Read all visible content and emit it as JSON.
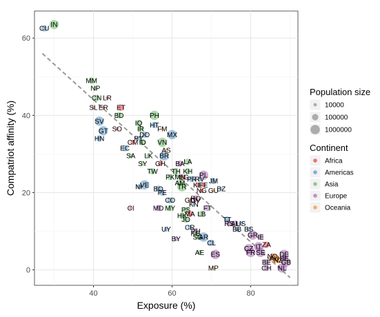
{
  "chart_data": {
    "type": "scatter",
    "xlabel": "Exposure (%)",
    "ylabel": "Compatriot affinity (%)",
    "xlim": [
      25,
      92
    ],
    "ylim": [
      -4,
      67
    ],
    "xticks": [
      40,
      60,
      80
    ],
    "yticks": [
      0,
      20,
      40,
      60
    ],
    "x_tick_labels": [
      "40",
      "60",
      "80"
    ],
    "y_tick_labels": [
      "0",
      "20",
      "40",
      "60"
    ],
    "grid": true,
    "trendline": {
      "style": "dashed",
      "x": [
        27,
        90
      ],
      "y": [
        56,
        -2
      ]
    },
    "colors": {
      "Africa": "#e41a1c",
      "Americas": "#377eb8",
      "Asia": "#4daf4a",
      "Europe": "#984ea3",
      "Oceania": "#ff7f00"
    },
    "legend_size": {
      "title": "Population size",
      "entries": [
        {
          "label": "10000",
          "value": 10000
        },
        {
          "label": "100000",
          "value": 100000
        },
        {
          "label": "1000000",
          "value": 1000000
        }
      ]
    },
    "legend_continent": {
      "title": "Continent",
      "entries": [
        "Africa",
        "Americas",
        "Asia",
        "Europe",
        "Oceania"
      ]
    },
    "points": [
      {
        "label": "CU",
        "x": 27.5,
        "y": 62.5,
        "continent": "Americas",
        "pop": 100000
      },
      {
        "label": "IN",
        "x": 30.0,
        "y": 63.5,
        "continent": "Asia",
        "pop": 1000000
      },
      {
        "label": "MM",
        "x": 39.5,
        "y": 49.0,
        "continent": "Asia",
        "pop": 100000
      },
      {
        "label": "NP",
        "x": 40.5,
        "y": 47.0,
        "continent": "Asia",
        "pop": 30000
      },
      {
        "label": "CN",
        "x": 40.8,
        "y": 44.5,
        "continent": "Asia",
        "pop": 100000
      },
      {
        "label": "LR",
        "x": 43.5,
        "y": 44.5,
        "continent": "Africa",
        "pop": 10000
      },
      {
        "label": "SL",
        "x": 40.0,
        "y": 42.0,
        "continent": "Africa",
        "pop": 10000
      },
      {
        "label": "ER",
        "x": 42.5,
        "y": 42.0,
        "continent": "Africa",
        "pop": 10000
      },
      {
        "label": "ET",
        "x": 47.0,
        "y": 42.0,
        "continent": "Africa",
        "pop": 100000
      },
      {
        "label": "BD",
        "x": 46.5,
        "y": 40.0,
        "continent": "Asia",
        "pop": 100000
      },
      {
        "label": "PH",
        "x": 55.5,
        "y": 40.0,
        "continent": "Asia",
        "pop": 1000000
      },
      {
        "label": "SV",
        "x": 41.5,
        "y": 38.5,
        "continent": "Americas",
        "pop": 1000000
      },
      {
        "label": "IQ",
        "x": 51.5,
        "y": 38.0,
        "continent": "Asia",
        "pop": 100000
      },
      {
        "label": "HT",
        "x": 55.5,
        "y": 37.5,
        "continent": "Americas",
        "pop": 100000
      },
      {
        "label": "IR",
        "x": 52.0,
        "y": 36.5,
        "continent": "Asia",
        "pop": 100000
      },
      {
        "label": "SO",
        "x": 46.0,
        "y": 36.5,
        "continent": "Africa",
        "pop": 10000
      },
      {
        "label": "FM",
        "x": 57.5,
        "y": 36.5,
        "continent": "Oceania",
        "pop": 10000
      },
      {
        "label": "GT",
        "x": 42.5,
        "y": 36.0,
        "continent": "Americas",
        "pop": 1000000
      },
      {
        "label": "DO",
        "x": 53.0,
        "y": 35.0,
        "continent": "Americas",
        "pop": 100000
      },
      {
        "label": "MX",
        "x": 60.0,
        "y": 35.0,
        "continent": "Americas",
        "pop": 1000000
      },
      {
        "label": "HN",
        "x": 41.5,
        "y": 34.0,
        "continent": "Americas",
        "pop": 100000
      },
      {
        "label": "PY",
        "x": 51.5,
        "y": 34.0,
        "continent": "Americas",
        "pop": 30000
      },
      {
        "label": "CM",
        "x": 50.0,
        "y": 33.0,
        "continent": "Africa",
        "pop": 30000
      },
      {
        "label": "ID",
        "x": 52.5,
        "y": 33.0,
        "continent": "Asia",
        "pop": 100000
      },
      {
        "label": "VN",
        "x": 57.5,
        "y": 33.0,
        "continent": "Asia",
        "pop": 1000000
      },
      {
        "label": "EC",
        "x": 48.0,
        "y": 31.5,
        "continent": "Americas",
        "pop": 100000
      },
      {
        "label": "AS",
        "x": 58.5,
        "y": 31.0,
        "continent": "Oceania",
        "pop": 10000
      },
      {
        "label": "SA",
        "x": 49.5,
        "y": 29.5,
        "continent": "Asia",
        "pop": 30000
      },
      {
        "label": "LK",
        "x": 54.0,
        "y": 29.5,
        "continent": "Asia",
        "pop": 30000
      },
      {
        "label": "BR",
        "x": 58.0,
        "y": 29.5,
        "continent": "Americas",
        "pop": 1000000
      },
      {
        "label": "SY",
        "x": 52.5,
        "y": 27.5,
        "continent": "Asia",
        "pop": 30000
      },
      {
        "label": "GH",
        "x": 57.0,
        "y": 27.5,
        "continent": "Africa",
        "pop": 30000
      },
      {
        "label": "BA",
        "x": 62.0,
        "y": 27.5,
        "continent": "Europe",
        "pop": 100000
      },
      {
        "label": "LA",
        "x": 64.0,
        "y": 28.0,
        "continent": "Asia",
        "pop": 100000
      },
      {
        "label": "TW",
        "x": 55.0,
        "y": 25.5,
        "continent": "Asia",
        "pop": 100000
      },
      {
        "label": "TH",
        "x": 61.0,
        "y": 25.5,
        "continent": "Asia",
        "pop": 100000
      },
      {
        "label": "KH",
        "x": 64.0,
        "y": 25.5,
        "continent": "Asia",
        "pop": 100000
      },
      {
        "label": "PK",
        "x": 59.5,
        "y": 24.0,
        "continent": "Asia",
        "pop": 100000
      },
      {
        "label": "MN",
        "x": 62.0,
        "y": 24.0,
        "continent": "Asia",
        "pop": 30000
      },
      {
        "label": "EG",
        "x": 63.0,
        "y": 24.0,
        "continent": "Africa",
        "pop": 30000
      },
      {
        "label": "PL",
        "x": 68.0,
        "y": 24.5,
        "continent": "Europe",
        "pop": 1000000
      },
      {
        "label": "AM",
        "x": 62.0,
        "y": 22.5,
        "continent": "Asia",
        "pop": 100000
      },
      {
        "label": "PR",
        "x": 65.0,
        "y": 23.5,
        "continent": "Americas",
        "pop": 100000
      },
      {
        "label": "RV",
        "x": 67.0,
        "y": 23.5,
        "continent": "Americas",
        "pop": 30000
      },
      {
        "label": "JM",
        "x": 70.5,
        "y": 23.0,
        "continent": "Americas",
        "pop": 100000
      },
      {
        "label": "NI",
        "x": 51.5,
        "y": 21.5,
        "continent": "Americas",
        "pop": 30000
      },
      {
        "label": "VE",
        "x": 53.0,
        "y": 22.0,
        "continent": "Americas",
        "pop": 1000000
      },
      {
        "label": "BO",
        "x": 56.5,
        "y": 21.0,
        "continent": "Americas",
        "pop": 100000
      },
      {
        "label": "TR",
        "x": 62.5,
        "y": 21.5,
        "continent": "Asia",
        "pop": 1000000
      },
      {
        "label": "KE",
        "x": 66.5,
        "y": 22.0,
        "continent": "Africa",
        "pop": 30000
      },
      {
        "label": "FE",
        "x": 68.0,
        "y": 22.0,
        "continent": "Africa",
        "pop": 30000
      },
      {
        "label": "BZ",
        "x": 72.5,
        "y": 21.0,
        "continent": "Americas",
        "pop": 10000
      },
      {
        "label": "NG",
        "x": 67.5,
        "y": 20.5,
        "continent": "Africa",
        "pop": 30000
      },
      {
        "label": "GU",
        "x": 70.5,
        "y": 20.5,
        "continent": "Oceania",
        "pop": 10000
      },
      {
        "label": "PE",
        "x": 57.5,
        "y": 20.0,
        "continent": "Americas",
        "pop": 100000
      },
      {
        "label": "GD",
        "x": 64.5,
        "y": 18.0,
        "continent": "Africa",
        "pop": 10000
      },
      {
        "label": "RO",
        "x": 66.0,
        "y": 18.5,
        "continent": "Europe",
        "pop": 100000
      },
      {
        "label": "CV",
        "x": 66.0,
        "y": 18.0,
        "continent": "Africa",
        "pop": 10000
      },
      {
        "label": "CO",
        "x": 59.5,
        "y": 18.0,
        "continent": "Americas",
        "pop": 100000
      },
      {
        "label": "KN",
        "x": 65.5,
        "y": 17.0,
        "continent": "Americas",
        "pop": 10000
      },
      {
        "label": "CI",
        "x": 49.5,
        "y": 16.0,
        "continent": "Africa",
        "pop": 10000
      },
      {
        "label": "MD",
        "x": 56.5,
        "y": 16.0,
        "continent": "Europe",
        "pop": 100000
      },
      {
        "label": "MY",
        "x": 59.5,
        "y": 16.0,
        "continent": "Asia",
        "pop": 100000
      },
      {
        "label": "PS",
        "x": 63.5,
        "y": 15.5,
        "continent": "Asia",
        "pop": 100000
      },
      {
        "label": "FT",
        "x": 69.0,
        "y": 16.0,
        "continent": "Europe",
        "pop": 100000
      },
      {
        "label": "HK",
        "x": 62.5,
        "y": 14.0,
        "continent": "Asia",
        "pop": 100000
      },
      {
        "label": "MA",
        "x": 64.5,
        "y": 14.5,
        "continent": "Africa",
        "pop": 100000
      },
      {
        "label": "LB",
        "x": 67.5,
        "y": 14.5,
        "continent": "Asia",
        "pop": 100000
      },
      {
        "label": "TT",
        "x": 74.0,
        "y": 13.0,
        "continent": "Americas",
        "pop": 100000
      },
      {
        "label": "JO",
        "x": 63.5,
        "y": 13.0,
        "continent": "Asia",
        "pop": 100000
      },
      {
        "label": "RS",
        "x": 74.5,
        "y": 12.0,
        "continent": "Europe",
        "pop": 100000
      },
      {
        "label": "AL",
        "x": 76.0,
        "y": 12.0,
        "continent": "Europe",
        "pop": 100000
      },
      {
        "label": "US",
        "x": 77.5,
        "y": 12.0,
        "continent": "Americas",
        "pop": 30000
      },
      {
        "label": "UY",
        "x": 58.5,
        "y": 10.5,
        "continent": "Americas",
        "pop": 30000
      },
      {
        "label": "CR",
        "x": 64.5,
        "y": 11.0,
        "continent": "Americas",
        "pop": 30000
      },
      {
        "label": "PU",
        "x": 66.0,
        "y": 10.0,
        "continent": "Europe",
        "pop": 100000
      },
      {
        "label": "BB",
        "x": 76.5,
        "y": 10.5,
        "continent": "Americas",
        "pop": 30000
      },
      {
        "label": "BS",
        "x": 79.5,
        "y": 10.5,
        "continent": "Americas",
        "pop": 30000
      },
      {
        "label": "KG",
        "x": 66.0,
        "y": 9.5,
        "continent": "Asia",
        "pop": 30000
      },
      {
        "label": "GR",
        "x": 80.5,
        "y": 9.0,
        "continent": "Europe",
        "pop": 1000000
      },
      {
        "label": "IE",
        "x": 82.5,
        "y": 8.5,
        "continent": "Europe",
        "pop": 100000
      },
      {
        "label": "SG",
        "x": 66.5,
        "y": 8.5,
        "continent": "Asia",
        "pop": 100000
      },
      {
        "label": "AR",
        "x": 68.0,
        "y": 8.5,
        "continent": "Americas",
        "pop": 1000000
      },
      {
        "label": "BY",
        "x": 61.0,
        "y": 8.0,
        "continent": "Europe",
        "pop": 30000
      },
      {
        "label": "CL",
        "x": 70.0,
        "y": 7.0,
        "continent": "Americas",
        "pop": 100000
      },
      {
        "label": "CZ",
        "x": 79.5,
        "y": 5.5,
        "continent": "Europe",
        "pop": 1000000
      },
      {
        "label": "IT",
        "x": 82.0,
        "y": 6.0,
        "continent": "Europe",
        "pop": 1000000
      },
      {
        "label": "ZA",
        "x": 84.0,
        "y": 6.5,
        "continent": "Africa",
        "pop": 100000
      },
      {
        "label": "FR",
        "x": 80.0,
        "y": 4.5,
        "continent": "Europe",
        "pop": 1000000
      },
      {
        "label": "SE",
        "x": 82.5,
        "y": 4.5,
        "continent": "Europe",
        "pop": 1000000
      },
      {
        "label": "AE",
        "x": 67.0,
        "y": 4.5,
        "continent": "Asia",
        "pop": 30000
      },
      {
        "label": "ES",
        "x": 71.0,
        "y": 4.0,
        "continent": "Europe",
        "pop": 1000000
      },
      {
        "label": "DE",
        "x": 88.5,
        "y": 4.0,
        "continent": "Europe",
        "pop": 1000000
      },
      {
        "label": "NO",
        "x": 85.5,
        "y": 3.5,
        "continent": "Europe",
        "pop": 100000
      },
      {
        "label": "AU",
        "x": 86.0,
        "y": 3.0,
        "continent": "Oceania",
        "pop": 1000000
      },
      {
        "label": "UE",
        "x": 88.5,
        "y": 3.0,
        "continent": "Europe",
        "pop": 100000
      },
      {
        "label": "BE",
        "x": 84.0,
        "y": 2.0,
        "continent": "Europe",
        "pop": 100000
      },
      {
        "label": "NZ",
        "x": 87.0,
        "y": 2.5,
        "continent": "Oceania",
        "pop": 100000
      },
      {
        "label": "GB",
        "x": 89.0,
        "y": 2.0,
        "continent": "Europe",
        "pop": 1000000
      },
      {
        "label": "MP",
        "x": 70.5,
        "y": 0.5,
        "continent": "Oceania",
        "pop": 10000
      },
      {
        "label": "CH",
        "x": 84.0,
        "y": 0.5,
        "continent": "Europe",
        "pop": 100000
      },
      {
        "label": "NL",
        "x": 88.0,
        "y": 0.5,
        "continent": "Europe",
        "pop": 1000000
      }
    ]
  }
}
